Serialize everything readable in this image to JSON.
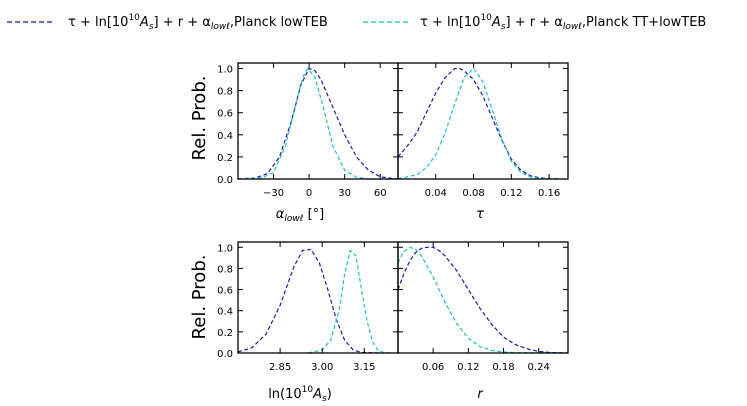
{
  "legend": {
    "items": [
      {
        "label_main": "τ + ln[10",
        "label_sup": "10",
        "label_mid": "A",
        "label_sub": "s",
        "label_tail": "] + r + α",
        "label_sub2": "lowℓ",
        "label_end": ",Planck lowTEB",
        "color": "#1a1aa8"
      },
      {
        "label_main": "τ + ln[10",
        "label_sup": "10",
        "label_mid": "A",
        "label_sub": "s",
        "label_tail": "] + r + α",
        "label_sub2": "lowℓ",
        "label_end": ",Planck TT+lowTEB",
        "color": "#22bfc8"
      }
    ]
  },
  "ylabel": "Rel.  Prob.",
  "chart_data": [
    {
      "type": "line",
      "id": "alpha",
      "xlabel": "α",
      "xlabel_sub": "lowℓ",
      "xlabel_unit": " [°]",
      "xlim": [
        -60,
        75
      ],
      "ylim": [
        0,
        1.05
      ],
      "xticks": [
        -30,
        0,
        30,
        60
      ],
      "xticklabels": [
        "−30",
        "0",
        "30",
        "60"
      ],
      "yticks": [
        0.0,
        0.2,
        0.4,
        0.6,
        0.8,
        1.0
      ],
      "yticklabels": [
        "0.0",
        "0.2",
        "0.4",
        "0.6",
        "0.8",
        "1.0"
      ],
      "series": [
        {
          "color": "#1a1aa8",
          "x": [
            -60,
            -45,
            -35,
            -25,
            -15,
            -7,
            0,
            5,
            10,
            20,
            30,
            40,
            50,
            60,
            75
          ],
          "y": [
            0.0,
            0.01,
            0.05,
            0.2,
            0.52,
            0.85,
            1.0,
            0.98,
            0.9,
            0.65,
            0.4,
            0.2,
            0.08,
            0.02,
            0.0
          ]
        },
        {
          "color": "#22bfc8",
          "x": [
            -60,
            -40,
            -30,
            -20,
            -12,
            -5,
            -1,
            5,
            12,
            20,
            30,
            40,
            50,
            75
          ],
          "y": [
            0.0,
            0.01,
            0.06,
            0.3,
            0.65,
            0.93,
            1.0,
            0.92,
            0.65,
            0.3,
            0.08,
            0.015,
            0.0,
            0.0
          ]
        }
      ]
    },
    {
      "type": "line",
      "id": "tau",
      "xlabel": "τ",
      "xlim": [
        0.0,
        0.18
      ],
      "ylim": [
        0,
        1.05
      ],
      "xticks": [
        0.04,
        0.08,
        0.12,
        0.16
      ],
      "xticklabels": [
        "0.04",
        "0.08",
        "0.12",
        "0.16"
      ],
      "yticks": [
        0.0,
        0.2,
        0.4,
        0.6,
        0.8,
        1.0
      ],
      "yticklabels": [],
      "series": [
        {
          "color": "#1a1aa8",
          "x": [
            0.0,
            0.01,
            0.02,
            0.03,
            0.04,
            0.05,
            0.06,
            0.065,
            0.07,
            0.08,
            0.09,
            0.1,
            0.11,
            0.12,
            0.13,
            0.14,
            0.15,
            0.17
          ],
          "y": [
            0.2,
            0.3,
            0.42,
            0.6,
            0.78,
            0.92,
            1.0,
            1.0,
            0.98,
            0.9,
            0.75,
            0.55,
            0.35,
            0.18,
            0.08,
            0.03,
            0.01,
            0.0
          ]
        },
        {
          "color": "#22bfc8",
          "x": [
            0.0,
            0.02,
            0.03,
            0.04,
            0.05,
            0.06,
            0.07,
            0.08,
            0.09,
            0.1,
            0.11,
            0.12,
            0.13,
            0.14,
            0.15,
            0.17
          ],
          "y": [
            0.0,
            0.04,
            0.1,
            0.22,
            0.42,
            0.68,
            0.92,
            1.0,
            0.88,
            0.62,
            0.36,
            0.16,
            0.06,
            0.02,
            0.005,
            0.0
          ]
        }
      ]
    },
    {
      "type": "line",
      "id": "lnAs",
      "xlabel": "ln(10",
      "xlabel_sup": "10",
      "xlabel_mid": "A",
      "xlabel_sub": "s",
      "xlabel_end": ")",
      "xlim": [
        2.7,
        3.27
      ],
      "ylim": [
        0,
        1.05
      ],
      "xticks": [
        2.85,
        3.0,
        3.15
      ],
      "xticklabels": [
        "2.85",
        "3.00",
        "3.15"
      ],
      "yticks": [
        0.0,
        0.2,
        0.4,
        0.6,
        0.8,
        1.0
      ],
      "yticklabels": [
        "0.0",
        "0.2",
        "0.4",
        "0.6",
        "0.8",
        "1.0"
      ],
      "series": [
        {
          "color": "#1a1aa8",
          "x": [
            2.7,
            2.75,
            2.8,
            2.85,
            2.9,
            2.93,
            2.96,
            2.99,
            3.02,
            3.05,
            3.08,
            3.11,
            3.14,
            3.2
          ],
          "y": [
            0.01,
            0.05,
            0.18,
            0.45,
            0.82,
            0.97,
            0.98,
            0.85,
            0.6,
            0.32,
            0.12,
            0.03,
            0.005,
            0.0
          ]
        },
        {
          "color": "#22bfc8",
          "x": [
            2.95,
            3.0,
            3.03,
            3.06,
            3.08,
            3.1,
            3.12,
            3.14,
            3.16,
            3.18,
            3.2,
            3.22,
            3.25
          ],
          "y": [
            0.0,
            0.03,
            0.12,
            0.4,
            0.75,
            0.97,
            0.92,
            0.6,
            0.3,
            0.1,
            0.02,
            0.005,
            0.0
          ]
        }
      ]
    },
    {
      "type": "line",
      "id": "r",
      "xlabel": "r",
      "xlim": [
        0.0,
        0.29
      ],
      "ylim": [
        0,
        1.05
      ],
      "xticks": [
        0.06,
        0.12,
        0.18,
        0.24
      ],
      "xticklabels": [
        "0.06",
        "0.12",
        "0.18",
        "0.24"
      ],
      "yticks": [
        0.0,
        0.2,
        0.4,
        0.6,
        0.8,
        1.0
      ],
      "yticklabels": [],
      "series": [
        {
          "color": "#1a1aa8",
          "x": [
            0.0,
            0.01,
            0.02,
            0.03,
            0.04,
            0.05,
            0.06,
            0.07,
            0.08,
            0.1,
            0.12,
            0.14,
            0.16,
            0.18,
            0.2,
            0.22,
            0.24,
            0.26,
            0.29
          ],
          "y": [
            0.6,
            0.75,
            0.87,
            0.95,
            0.99,
            1.0,
            1.0,
            0.97,
            0.92,
            0.78,
            0.6,
            0.42,
            0.27,
            0.15,
            0.08,
            0.04,
            0.015,
            0.005,
            0.0
          ]
        },
        {
          "color": "#22bfc8",
          "x": [
            0.0,
            0.01,
            0.02,
            0.03,
            0.04,
            0.06,
            0.08,
            0.1,
            0.12,
            0.14,
            0.16,
            0.18,
            0.2,
            0.29
          ],
          "y": [
            0.85,
            0.96,
            1.0,
            0.98,
            0.92,
            0.72,
            0.48,
            0.28,
            0.14,
            0.06,
            0.025,
            0.01,
            0.003,
            0.0
          ]
        }
      ]
    }
  ]
}
